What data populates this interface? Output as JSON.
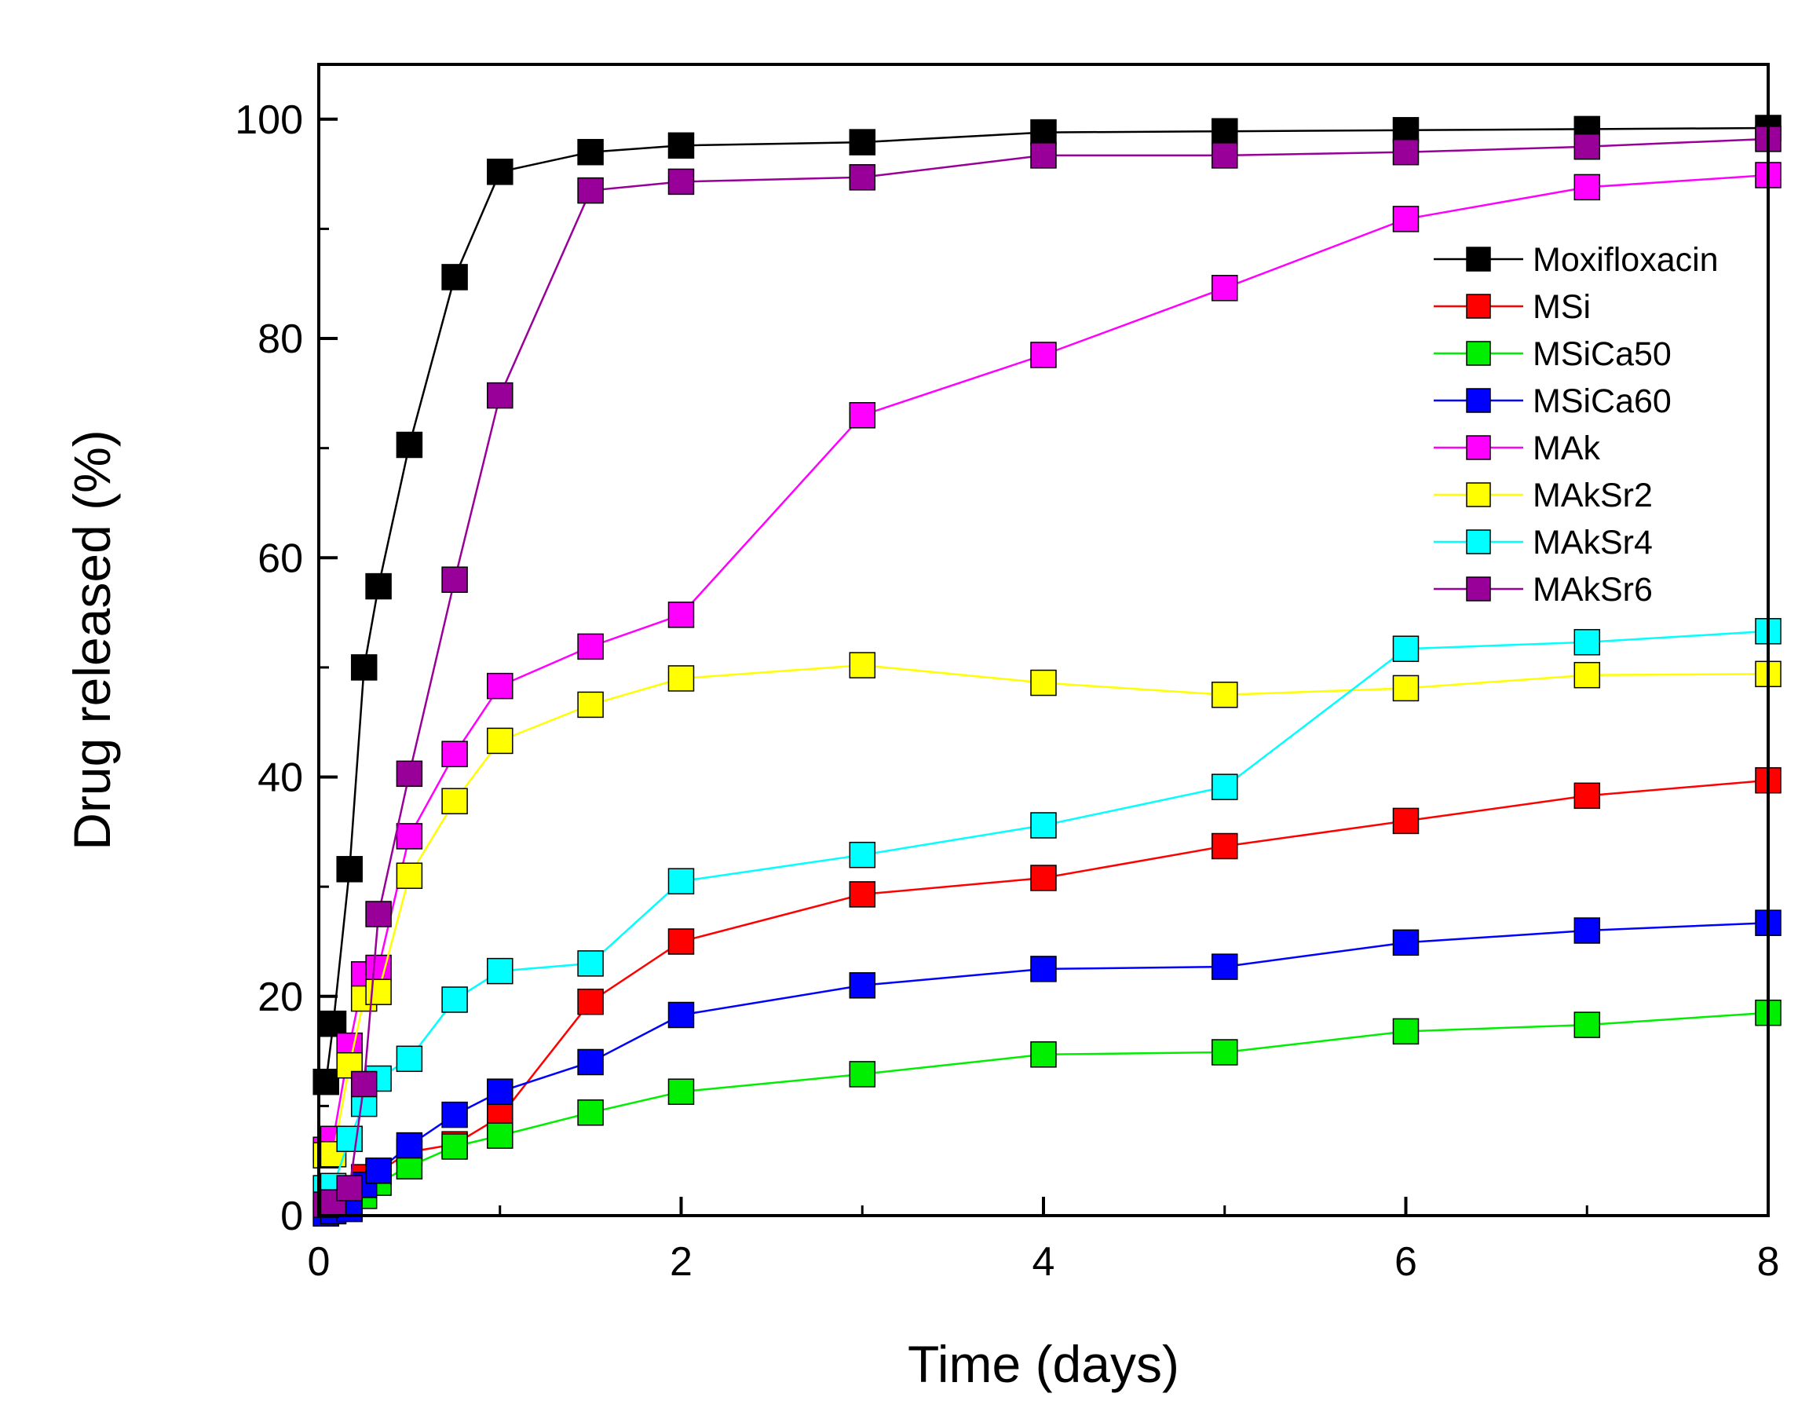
{
  "chart_data": {
    "type": "line",
    "title": "",
    "xlabel": "Time (days)",
    "ylabel": "Drug released (%)",
    "xlim": [
      0,
      8
    ],
    "ylim": [
      0,
      105
    ],
    "x_major_ticks": [
      0,
      2,
      4,
      6,
      8
    ],
    "x_major_tick_labels": [
      "0",
      "2",
      "4",
      "6",
      "8"
    ],
    "y_major_ticks": [
      0,
      20,
      40,
      60,
      80,
      100
    ],
    "y_major_tick_labels": [
      "0",
      "20",
      "40",
      "60",
      "80",
      "100"
    ],
    "grid": false,
    "legend_position": "right-middle-upper",
    "series": [
      {
        "name": "Moxifloxacin",
        "color": "#000000",
        "x": [
          0.04,
          0.08,
          0.17,
          0.25,
          0.33,
          0.5,
          0.75,
          1,
          1.5,
          2,
          3,
          4,
          5,
          6,
          7,
          8
        ],
        "y": [
          12.2,
          17.5,
          31.6,
          50.0,
          57.4,
          70.3,
          85.6,
          95.2,
          97.0,
          97.6,
          97.9,
          98.8,
          98.9,
          99.0,
          99.1,
          99.2
        ]
      },
      {
        "name": "MSi",
        "color": "#ff0000",
        "x": [
          0.04,
          0.08,
          0.17,
          0.25,
          0.33,
          0.5,
          0.75,
          1,
          1.5,
          2,
          3,
          4,
          5,
          6,
          7,
          8
        ],
        "y": [
          0.3,
          0.8,
          1.6,
          3.5,
          4.0,
          5.8,
          6.5,
          9.0,
          19.5,
          25.0,
          29.3,
          30.8,
          33.7,
          36.0,
          38.3,
          39.7
        ]
      },
      {
        "name": "MSiCa50",
        "color": "#00ee00",
        "x": [
          0.04,
          0.08,
          0.17,
          0.25,
          0.33,
          0.5,
          0.75,
          1,
          1.5,
          2,
          3,
          4,
          5,
          6,
          7,
          8
        ],
        "y": [
          0.2,
          0.5,
          1.0,
          1.8,
          3.0,
          4.5,
          6.3,
          7.3,
          9.4,
          11.3,
          12.9,
          14.7,
          14.9,
          16.8,
          17.4,
          18.5
        ]
      },
      {
        "name": "MSiCa60",
        "color": "#0000ff",
        "x": [
          0.04,
          0.08,
          0.17,
          0.25,
          0.33,
          0.5,
          0.75,
          1,
          1.5,
          2,
          3,
          4,
          5,
          6,
          7,
          8
        ],
        "y": [
          0.2,
          0.4,
          0.6,
          2.8,
          4.1,
          6.4,
          9.2,
          11.3,
          14.0,
          18.3,
          21.0,
          22.5,
          22.7,
          24.9,
          26.0,
          26.7
        ]
      },
      {
        "name": "MAk",
        "color": "#ff00ff",
        "x": [
          0.04,
          0.08,
          0.17,
          0.25,
          0.33,
          0.5,
          0.75,
          1,
          1.5,
          2,
          3,
          4,
          5,
          6,
          7,
          8
        ],
        "y": [
          6.0,
          7.0,
          15.5,
          22.0,
          22.6,
          34.6,
          42.1,
          48.3,
          51.9,
          54.8,
          73.0,
          78.5,
          84.6,
          90.9,
          93.8,
          94.9
        ]
      },
      {
        "name": "MAkSr2",
        "color": "#ffff00",
        "x": [
          0.04,
          0.08,
          0.17,
          0.25,
          0.33,
          0.5,
          0.75,
          1,
          1.5,
          2,
          3,
          4,
          5,
          6,
          7,
          8
        ],
        "y": [
          5.5,
          5.6,
          13.7,
          19.8,
          20.4,
          31.0,
          37.8,
          43.3,
          46.6,
          49.0,
          50.2,
          48.6,
          47.5,
          48.1,
          49.3,
          49.4
        ]
      },
      {
        "name": "MAkSr4",
        "color": "#00ffff",
        "x": [
          0.04,
          0.08,
          0.17,
          0.25,
          0.33,
          0.5,
          0.75,
          1,
          1.5,
          2,
          3,
          4,
          5,
          6,
          7,
          8
        ],
        "y": [
          2.5,
          2.7,
          7.0,
          10.2,
          12.5,
          14.3,
          19.7,
          22.3,
          23.0,
          30.5,
          32.9,
          35.6,
          39.1,
          51.7,
          52.3,
          53.3
        ]
      },
      {
        "name": "MAkSr6",
        "color": "#990099",
        "x": [
          0.04,
          0.08,
          0.17,
          0.25,
          0.33,
          0.5,
          0.75,
          1,
          1.5,
          2,
          3,
          4,
          5,
          6,
          7,
          8
        ],
        "y": [
          1.0,
          1.2,
          2.5,
          12.0,
          27.5,
          40.3,
          58.0,
          74.8,
          93.5,
          94.3,
          94.7,
          96.7,
          96.7,
          97.0,
          97.5,
          98.2
        ]
      }
    ]
  }
}
